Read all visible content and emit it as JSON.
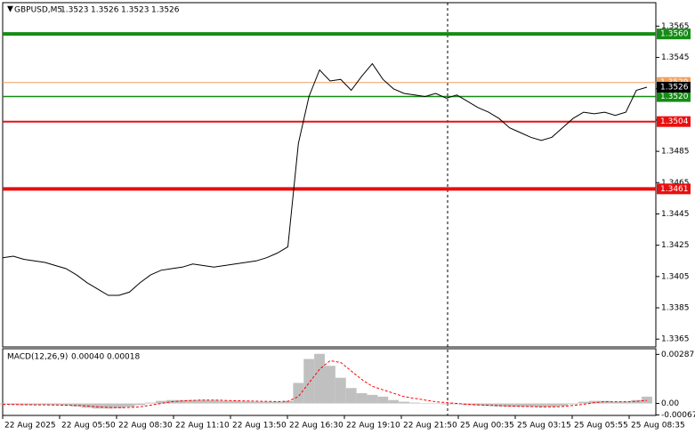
{
  "chart_data": [
    {
      "type": "line",
      "symbol": "GBPUSD,M5",
      "ohlc": [
        1.3523,
        1.3526,
        1.3523,
        1.3526
      ],
      "x_labels": [
        "22 Aug 2025",
        "22 Aug 05:50",
        "22 Aug 08:30",
        "22 Aug 11:10",
        "22 Aug 13:50",
        "22 Aug 16:30",
        "22 Aug 19:10",
        "22 Aug 21:50",
        "25 Aug 00:35",
        "25 Aug 03:15",
        "25 Aug 05:55",
        "25 Aug 08:35"
      ],
      "series": [
        {
          "color": "#000000",
          "values": [
            1.3417,
            1.3418,
            1.3416,
            1.3415,
            1.3414,
            1.3412,
            1.341,
            1.3406,
            1.3401,
            1.3397,
            1.3393,
            1.3393,
            1.3395,
            1.3401,
            1.3406,
            1.3409,
            1.341,
            1.3411,
            1.3413,
            1.3412,
            1.3411,
            1.3412,
            1.3413,
            1.3414,
            1.3415,
            1.3417,
            1.342,
            1.3424,
            1.349,
            1.352,
            1.3537,
            1.353,
            1.3531,
            1.3524,
            1.3533,
            1.3541,
            1.3531,
            1.3525,
            1.3522,
            1.3521,
            1.352,
            1.3522,
            1.3519,
            1.3521,
            1.3517,
            1.3513,
            1.351,
            1.3506,
            1.35,
            1.3497,
            1.3494,
            1.3492,
            1.3494,
            1.35,
            1.3506,
            1.351,
            1.3509,
            1.351,
            1.3508,
            1.351,
            1.3524,
            1.3526
          ]
        }
      ],
      "ylim": [
        1.336,
        1.358
      ],
      "yticks": [
        1.3365,
        1.3385,
        1.3405,
        1.3425,
        1.3445,
        1.3465,
        1.3485,
        1.3505,
        1.3525,
        1.3545,
        1.3565
      ],
      "levels": [
        {
          "value": 1.356,
          "label": "1.3560",
          "color": "#148c14"
        },
        {
          "value": 1.3529,
          "label": "1.3529",
          "color": "#f0a060"
        },
        {
          "value": 1.352,
          "label": "1.3520",
          "color": "#148c14"
        },
        {
          "value": 1.3504,
          "label": "1.3504",
          "color": "#e81010"
        },
        {
          "value": 1.3461,
          "label": "1.3461",
          "color": "#e81010"
        }
      ],
      "last_price": 1.3526
    },
    {
      "type": "macd",
      "title": "MACD(12,26,9)",
      "readout": [
        {
          "value": 0.0004,
          "label": "0.00040"
        },
        {
          "value": 0.00018,
          "label": "0.00018"
        }
      ],
      "series": [
        {
          "color": "#c0c0c0",
          "values": [
            -5e-05,
            -8e-05,
            -0.0001,
            -0.0001,
            -8e-05,
            -0.0001,
            -0.00012,
            -0.00018,
            -0.00025,
            -0.0003,
            -0.0003,
            -0.00028,
            -0.0002,
            -0.0001,
            5e-05,
            0.00015,
            0.0002,
            0.0002,
            0.0002,
            0.0002,
            0.00018,
            0.00015,
            0.00015,
            0.00012,
            0.0001,
            0.0001,
            0.0001,
            0.00015,
            0.0012,
            0.0026,
            0.0029,
            0.0022,
            0.0015,
            0.0009,
            0.0006,
            0.0005,
            0.0004,
            0.0002,
            0.0001,
            5e-05,
            0,
            0,
            -5e-05,
            -5e-05,
            -0.0001,
            -0.00012,
            -0.00015,
            -0.00018,
            -0.0002,
            -0.0002,
            -0.0002,
            -0.00022,
            -0.0002,
            -0.00015,
            -5e-05,
            0.0001,
            0.00015,
            0.00015,
            0.0001,
            0.0001,
            0.0002,
            0.0004
          ]
        },
        {
          "color": "#ff0000",
          "values": [
            -5e-05,
            -6e-05,
            -7e-05,
            -8e-05,
            -8e-05,
            -9e-05,
            -0.0001,
            -0.00012,
            -0.00015,
            -0.0002,
            -0.00023,
            -0.00025,
            -0.00023,
            -0.0002,
            -0.0001,
            0,
            0.0001,
            0.00015,
            0.00018,
            0.0002,
            0.0002,
            0.00018,
            0.00016,
            0.00015,
            0.00013,
            0.00012,
            0.00011,
            0.00012,
            0.0004,
            0.0012,
            0.002,
            0.0025,
            0.0024,
            0.0019,
            0.0014,
            0.001,
            0.0008,
            0.0006,
            0.0004,
            0.0003,
            0.0002,
            0.0001,
            5e-05,
            0,
            -5e-05,
            -8e-05,
            -0.0001,
            -0.00013,
            -0.00015,
            -0.00017,
            -0.00018,
            -0.0002,
            -0.0002,
            -0.00018,
            -0.00012,
            -5e-05,
            5e-05,
            0.0001,
            0.0001,
            0.0001,
            0.00012,
            0.00018
          ]
        }
      ],
      "ylim": [
        -0.0007,
        0.0032
      ],
      "yticks": [
        0.00287,
        {
          "value": 0,
          "label": "0.00"
        },
        -0.00067
      ]
    }
  ]
}
